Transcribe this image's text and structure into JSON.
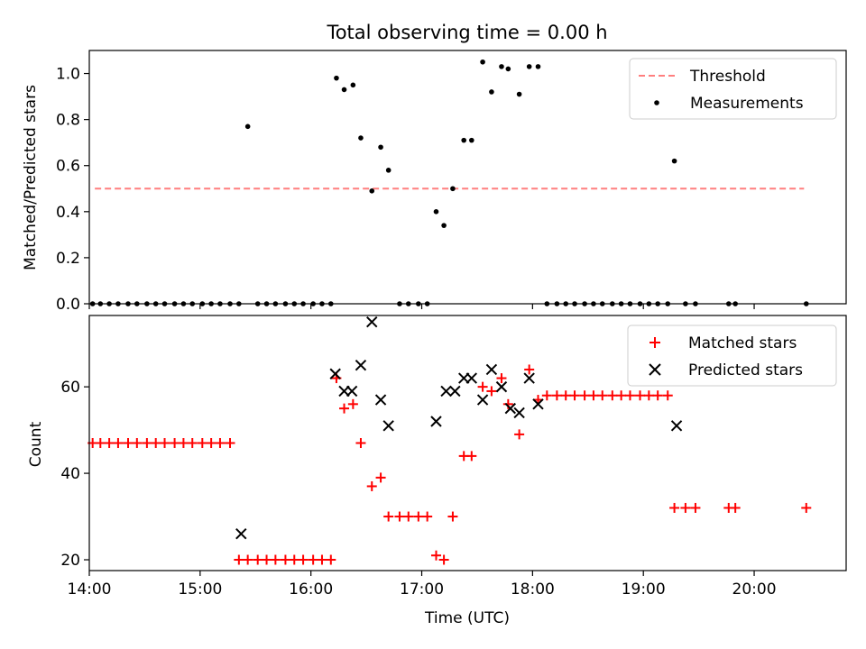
{
  "chart_data": [
    {
      "type": "scatter",
      "title": "Total observing time = 0.00 h",
      "xlabel": "",
      "ylabel": "Matched/Predicted stars",
      "xlim": [
        14.0,
        20.83
      ],
      "ylim": [
        0.0,
        1.1
      ],
      "x_ticks": [
        14,
        15,
        16,
        17,
        18,
        19,
        20
      ],
      "y_ticks": [
        0.0,
        0.2,
        0.4,
        0.6,
        0.8,
        1.0
      ],
      "y_tick_labels": [
        "0.0",
        "0.2",
        "0.4",
        "0.6",
        "0.8",
        "1.0"
      ],
      "legend_position": "top-right",
      "series": [
        {
          "name": "Threshold",
          "kind": "line",
          "style": "dashed",
          "color": "#ff7f7f",
          "x": [
            14.05,
            20.45
          ],
          "y": [
            0.5,
            0.5
          ]
        },
        {
          "name": "Measurements",
          "kind": "scatter",
          "color": "#000000",
          "x": [
            14.03,
            14.1,
            14.18,
            14.26,
            14.35,
            14.43,
            14.52,
            14.6,
            14.68,
            14.77,
            14.85,
            14.93,
            15.02,
            15.1,
            15.18,
            15.27,
            15.35,
            15.43,
            15.52,
            15.6,
            15.68,
            15.77,
            15.85,
            15.93,
            16.02,
            16.1,
            16.18,
            16.23,
            16.3,
            16.38,
            16.45,
            16.55,
            16.63,
            16.7,
            16.8,
            16.88,
            16.97,
            17.05,
            17.13,
            17.2,
            17.28,
            17.38,
            17.45,
            17.55,
            17.63,
            17.72,
            17.78,
            17.88,
            17.97,
            18.05,
            18.13,
            18.22,
            18.3,
            18.38,
            18.47,
            18.55,
            18.63,
            18.72,
            18.8,
            18.88,
            18.97,
            19.05,
            19.13,
            19.22,
            19.28,
            19.38,
            19.47,
            19.77,
            19.83,
            20.47
          ],
          "y": [
            0,
            0,
            0,
            0,
            0,
            0,
            0,
            0,
            0,
            0,
            0,
            0,
            0,
            0,
            0,
            0,
            0,
            0.77,
            0,
            0,
            0,
            0,
            0,
            0,
            0,
            0,
            0,
            0.98,
            0.93,
            0.95,
            0.72,
            0.49,
            0.68,
            0.58,
            0,
            0,
            0,
            0,
            0.4,
            0.34,
            0.5,
            0.71,
            0.71,
            1.05,
            0.92,
            1.03,
            1.02,
            0.91,
            1.03,
            1.03,
            0,
            0,
            0,
            0,
            0,
            0,
            0,
            0,
            0,
            0,
            0,
            0,
            0,
            0,
            0.62,
            0,
            0,
            0,
            0,
            0
          ]
        }
      ]
    },
    {
      "type": "scatter",
      "title": "",
      "xlabel": "Time (UTC)",
      "ylabel": "Count",
      "xlim": [
        14.0,
        20.83
      ],
      "ylim": [
        17.5,
        76.5
      ],
      "x_ticks": [
        14,
        15,
        16,
        17,
        18,
        19,
        20
      ],
      "x_tick_labels": [
        "14:00",
        "15:00",
        "16:00",
        "17:00",
        "18:00",
        "19:00",
        "20:00"
      ],
      "y_ticks": [
        20,
        40,
        60
      ],
      "y_tick_labels": [
        "20",
        "40",
        "60"
      ],
      "legend_position": "top-right",
      "series": [
        {
          "name": "Matched stars",
          "marker": "plus",
          "color": "#ff0000",
          "x": [
            14.03,
            14.1,
            14.18,
            14.26,
            14.35,
            14.43,
            14.52,
            14.6,
            14.68,
            14.77,
            14.85,
            14.93,
            15.02,
            15.1,
            15.18,
            15.27,
            15.35,
            15.43,
            15.52,
            15.6,
            15.68,
            15.77,
            15.85,
            15.93,
            16.02,
            16.1,
            16.18,
            16.23,
            16.3,
            16.38,
            16.45,
            16.55,
            16.63,
            16.7,
            16.8,
            16.88,
            16.97,
            17.05,
            17.13,
            17.2,
            17.28,
            17.38,
            17.45,
            17.55,
            17.63,
            17.72,
            17.78,
            17.88,
            17.97,
            18.05,
            18.13,
            18.22,
            18.3,
            18.38,
            18.47,
            18.55,
            18.63,
            18.72,
            18.8,
            18.88,
            18.97,
            19.05,
            19.13,
            19.22,
            19.28,
            19.38,
            19.47,
            19.77,
            19.83,
            20.47
          ],
          "y": [
            47,
            47,
            47,
            47,
            47,
            47,
            47,
            47,
            47,
            47,
            47,
            47,
            47,
            47,
            47,
            47,
            20,
            20,
            20,
            20,
            20,
            20,
            20,
            20,
            20,
            20,
            20,
            62,
            55,
            56,
            47,
            37,
            39,
            30,
            30,
            30,
            30,
            30,
            21,
            20,
            30,
            44,
            44,
            60,
            59,
            62,
            56,
            49,
            64,
            57,
            58,
            58,
            58,
            58,
            58,
            58,
            58,
            58,
            58,
            58,
            58,
            58,
            58,
            58,
            32,
            32,
            32,
            32,
            32,
            32
          ]
        },
        {
          "name": "Predicted stars",
          "marker": "x",
          "color": "#000000",
          "x": [
            15.37,
            16.22,
            16.3,
            16.37,
            16.45,
            16.55,
            16.63,
            16.7,
            17.13,
            17.22,
            17.3,
            17.38,
            17.45,
            17.55,
            17.63,
            17.72,
            17.8,
            17.88,
            17.97,
            18.05,
            19.3
          ],
          "y": [
            26,
            63,
            59,
            59,
            65,
            75,
            57,
            51,
            52,
            59,
            59,
            62,
            62,
            57,
            64,
            60,
            55,
            54,
            62,
            56,
            51
          ]
        }
      ]
    }
  ]
}
